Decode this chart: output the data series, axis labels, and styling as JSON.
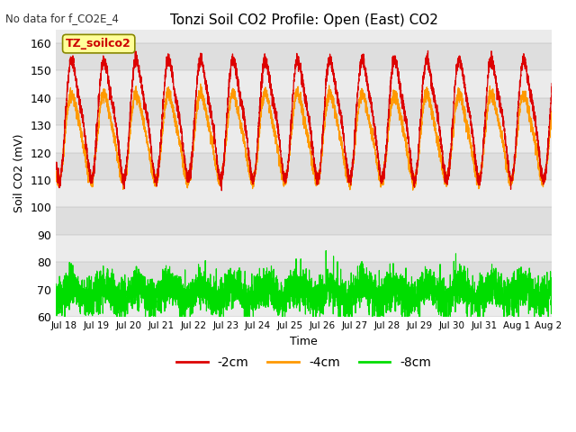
{
  "title": "Tonzi Soil CO2 Profile: Open (East) CO2",
  "xlabel": "Time",
  "ylabel": "Soil CO2 (mV)",
  "ylim": [
    60,
    165
  ],
  "yticks": [
    60,
    70,
    80,
    90,
    100,
    110,
    120,
    130,
    140,
    150,
    160
  ],
  "no_data_text": "No data for f_CO2E_4",
  "legend_title": "TZ_soilco2",
  "legend_title_color": "#cc0000",
  "legend_title_bg": "#ffff99",
  "legend_title_border": "#888800",
  "series": [
    {
      "label": "-2cm",
      "color": "#dd0000"
    },
    {
      "label": "-4cm",
      "color": "#ff9900"
    },
    {
      "label": "-8cm",
      "color": "#00dd00"
    }
  ],
  "band_colors": [
    "#ebebeb",
    "#dedede"
  ],
  "bg_color": "#ffffff",
  "x_start_day": 17.75,
  "x_end_day": 33.1,
  "x_tick_days": [
    18,
    19,
    20,
    21,
    22,
    23,
    24,
    25,
    26,
    27,
    28,
    29,
    30,
    31,
    32,
    33
  ],
  "x_tick_labels": [
    "Jul 18",
    "Jul 19",
    "Jul 20",
    "Jul 21",
    "Jul 22",
    "Jul 23",
    "Jul 24",
    "Jul 25",
    "Jul 26",
    "Jul 27",
    "Jul 28",
    "Jul 29",
    "Jul 30",
    "Jul 31",
    "Aug 1",
    "Aug 2"
  ]
}
